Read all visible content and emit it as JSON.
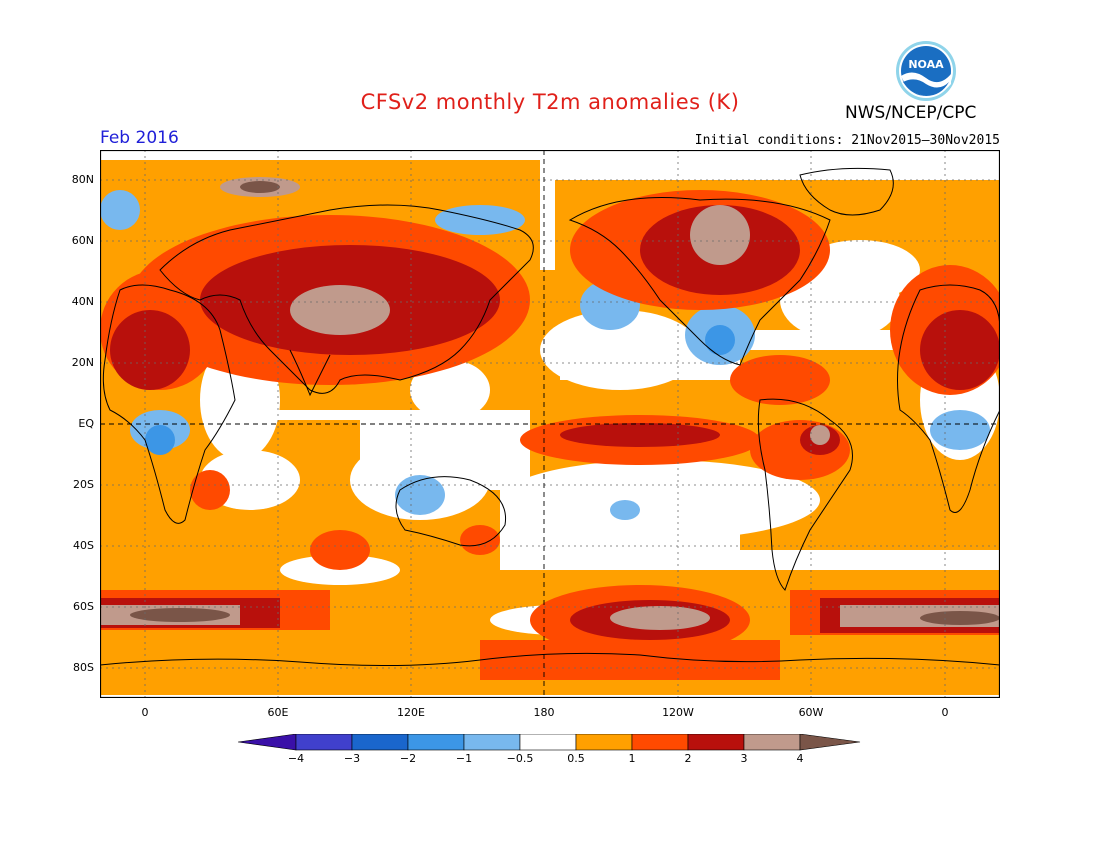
{
  "header": {
    "title": "CFSv2 monthly T2m anomalies (K)",
    "agency": "NWS/NCEP/CPC",
    "logo_text": "NOAA",
    "valid_month": "Feb 2016",
    "initial_conditions": "Initial conditions: 21Nov2015–30Nov2015"
  },
  "map": {
    "lat_labels": [
      "80N",
      "60N",
      "40N",
      "20N",
      "EQ",
      "20S",
      "40S",
      "60S",
      "80S"
    ],
    "lon_labels": [
      "0",
      "60E",
      "120E",
      "180",
      "120W",
      "60W",
      "0"
    ]
  },
  "legend": {
    "levels": [
      "−4",
      "−3",
      "−2",
      "−1",
      "−0.5",
      "0.5",
      "1",
      "2",
      "3",
      "4"
    ],
    "colors": [
      "#3a10a8",
      "#4040cc",
      "#1a66cc",
      "#3c96e6",
      "#78b8ee",
      "#ffffff",
      "#ffa000",
      "#ff4a00",
      "#b8100c",
      "#c09a8c",
      "#7a5548"
    ]
  }
}
